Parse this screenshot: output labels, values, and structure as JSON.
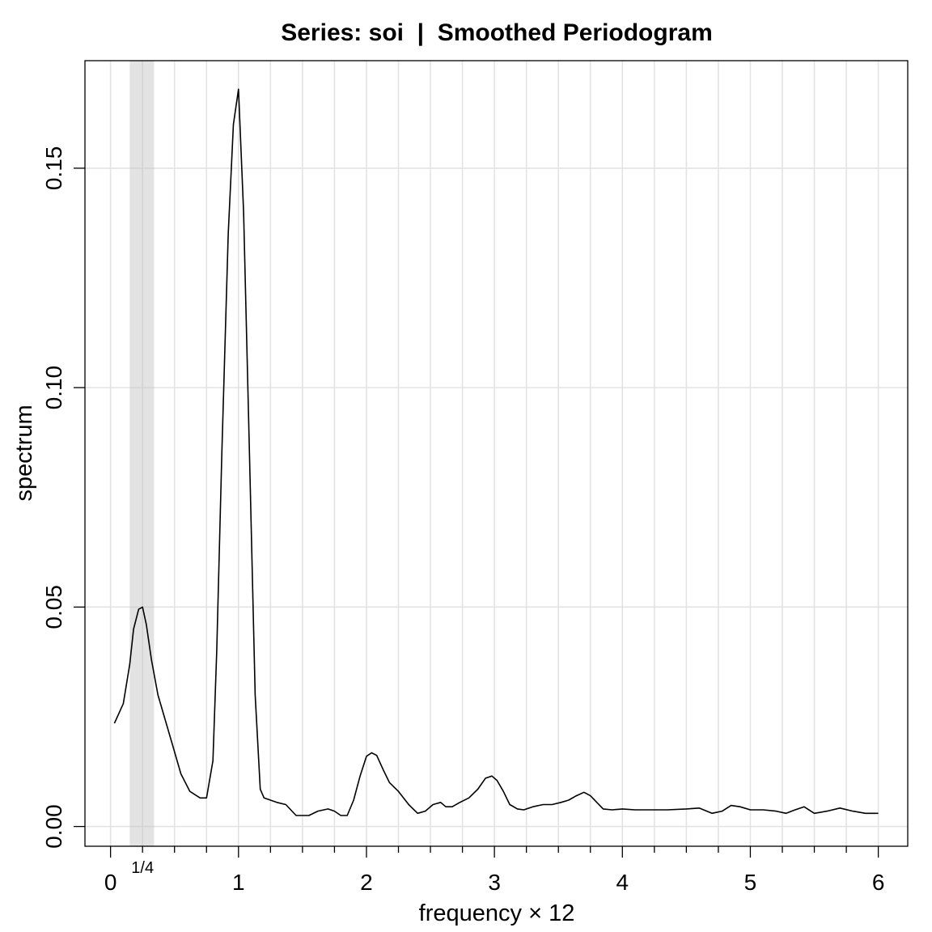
{
  "chart_data": {
    "type": "line",
    "title": "Series: soi  |  Smoothed Periodogram",
    "xlabel": "frequency × 12",
    "ylabel": "spectrum",
    "xlim": [
      -0.2,
      6.23
    ],
    "ylim": [
      -0.0045,
      0.1745
    ],
    "x_ticks": [
      0,
      1,
      2,
      3,
      4,
      5,
      6
    ],
    "x_tick_labels": [
      "0",
      "1",
      "2",
      "3",
      "4",
      "5",
      "6"
    ],
    "y_ticks": [
      0.0,
      0.05,
      0.1,
      0.15
    ],
    "y_tick_labels": [
      "0.00",
      "0.05",
      "0.10",
      "0.15"
    ],
    "x_minor_ticks": [
      0.25,
      0.5,
      0.75,
      1.25,
      1.5,
      1.75,
      2.25,
      2.5,
      2.75,
      3.25,
      3.5,
      3.75,
      4.25,
      4.5,
      4.75,
      5.25,
      5.5,
      5.75
    ],
    "grid": true,
    "bandwidth_band": {
      "x0": 0.15,
      "x1": 0.34,
      "label": "1/4",
      "label_x": 0.25
    },
    "series": [
      {
        "x": [
          0.03,
          0.1,
          0.15,
          0.18,
          0.22,
          0.25,
          0.28,
          0.32,
          0.37,
          0.42,
          0.48,
          0.55,
          0.62,
          0.7,
          0.75,
          0.8,
          0.83,
          0.87,
          0.92,
          0.96,
          1.0,
          1.04,
          1.09,
          1.13,
          1.17,
          1.2,
          1.25,
          1.3,
          1.37,
          1.45,
          1.55,
          1.62,
          1.7,
          1.75,
          1.8,
          1.85,
          1.9,
          1.95,
          2.0,
          2.04,
          2.08,
          2.13,
          2.18,
          2.25,
          2.33,
          2.4,
          2.46,
          2.52,
          2.58,
          2.62,
          2.67,
          2.73,
          2.8,
          2.87,
          2.93,
          2.98,
          3.02,
          3.07,
          3.12,
          3.18,
          3.23,
          3.3,
          3.38,
          3.45,
          3.52,
          3.58,
          3.64,
          3.7,
          3.75,
          3.8,
          3.85,
          3.92,
          4.0,
          4.1,
          4.2,
          4.35,
          4.5,
          4.6,
          4.7,
          4.78,
          4.85,
          4.92,
          5.0,
          5.1,
          5.2,
          5.28,
          5.35,
          5.42,
          5.5,
          5.6,
          5.7,
          5.8,
          5.9,
          6.0
        ],
        "values": [
          0.0235,
          0.028,
          0.037,
          0.045,
          0.0495,
          0.05,
          0.046,
          0.038,
          0.03,
          0.025,
          0.019,
          0.012,
          0.008,
          0.0065,
          0.0065,
          0.015,
          0.04,
          0.085,
          0.135,
          0.16,
          0.168,
          0.14,
          0.08,
          0.03,
          0.0085,
          0.0065,
          0.006,
          0.0055,
          0.005,
          0.0025,
          0.0025,
          0.0035,
          0.004,
          0.0035,
          0.0025,
          0.0025,
          0.006,
          0.0115,
          0.016,
          0.0168,
          0.0162,
          0.013,
          0.01,
          0.008,
          0.005,
          0.003,
          0.0035,
          0.005,
          0.0055,
          0.0045,
          0.0045,
          0.0055,
          0.0065,
          0.0085,
          0.011,
          0.0115,
          0.0105,
          0.008,
          0.005,
          0.004,
          0.0038,
          0.0045,
          0.005,
          0.005,
          0.0055,
          0.006,
          0.007,
          0.0078,
          0.007,
          0.0055,
          0.004,
          0.0038,
          0.004,
          0.0038,
          0.0038,
          0.0038,
          0.004,
          0.0042,
          0.003,
          0.0035,
          0.0048,
          0.0045,
          0.0038,
          0.0038,
          0.0035,
          0.003,
          0.0038,
          0.0045,
          0.003,
          0.0035,
          0.0042,
          0.0035,
          0.003,
          0.003
        ]
      }
    ]
  }
}
